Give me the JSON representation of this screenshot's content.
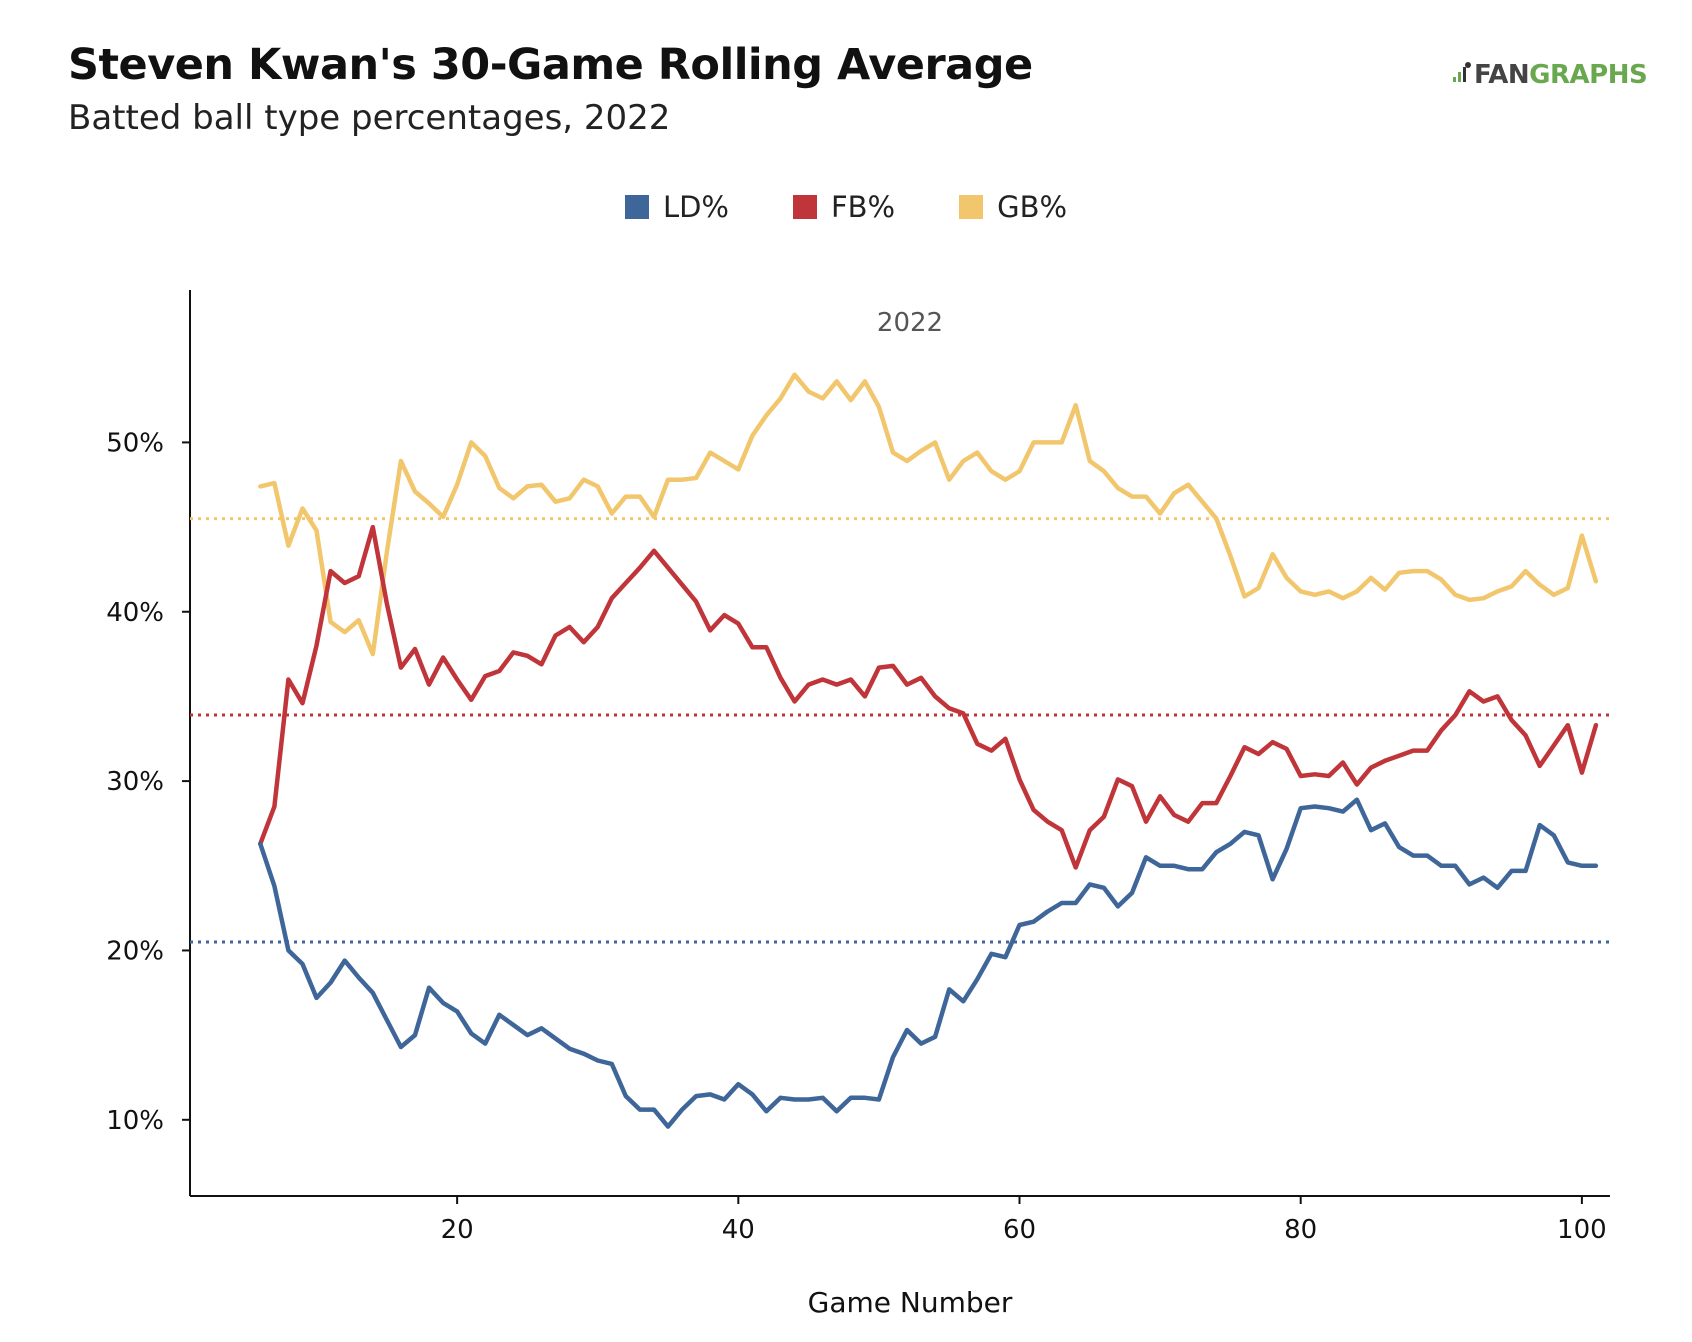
{
  "header": {
    "title": "Steven Kwan's 30-Game Rolling Average",
    "subtitle": "Batted ball type percentages, 2022"
  },
  "logo": {
    "left_text": "FAN",
    "right_text": "GRAPHS",
    "icon": "batter-icon"
  },
  "colors": {
    "LD": "#3f6699",
    "FB": "#c0353a",
    "GB": "#f2c66d"
  },
  "chart_data": {
    "type": "line",
    "facet_label": "2022",
    "xlabel": "Game Number",
    "ylabel": "",
    "xlim": [
      1,
      102
    ],
    "ylim": [
      5.5,
      59
    ],
    "xticks": [
      20,
      40,
      60,
      80,
      100
    ],
    "yticks": [
      10,
      20,
      30,
      40,
      50
    ],
    "ytick_labels": [
      "10%",
      "20%",
      "30%",
      "40%",
      "50%"
    ],
    "legend_position": "top-center",
    "x": [
      6,
      7,
      8,
      9,
      10,
      11,
      12,
      13,
      14,
      15,
      16,
      17,
      18,
      19,
      20,
      21,
      22,
      23,
      24,
      25,
      26,
      27,
      28,
      29,
      30,
      31,
      32,
      33,
      34,
      35,
      36,
      37,
      38,
      39,
      40,
      41,
      42,
      43,
      44,
      45,
      46,
      47,
      48,
      49,
      50,
      51,
      52,
      53,
      54,
      55,
      56,
      57,
      58,
      59,
      60,
      61,
      62,
      63,
      64,
      65,
      66,
      67,
      68,
      69,
      70,
      71,
      72,
      73,
      74,
      75,
      76,
      77,
      78,
      79,
      80,
      81,
      82,
      83,
      84,
      85,
      86,
      87,
      88,
      89,
      90,
      91,
      92,
      93,
      94,
      95,
      96,
      97,
      98,
      99,
      100,
      101
    ],
    "series": [
      {
        "name": "LD%",
        "color": "#3f6699",
        "values": [
          26.3,
          23.8,
          20.0,
          19.2,
          17.2,
          18.1,
          19.4,
          18.4,
          17.5,
          15.9,
          14.3,
          15.0,
          17.8,
          16.9,
          16.4,
          15.1,
          14.5,
          16.2,
          15.6,
          15.0,
          15.4,
          14.8,
          14.2,
          13.9,
          13.5,
          13.3,
          11.4,
          10.6,
          10.6,
          9.6,
          10.6,
          11.4,
          11.5,
          11.2,
          12.1,
          11.5,
          10.5,
          11.3,
          11.2,
          11.2,
          11.3,
          10.5,
          11.3,
          11.3,
          11.2,
          13.7,
          15.3,
          14.5,
          14.9,
          17.7,
          17.0,
          18.3,
          19.8,
          19.6,
          21.5,
          21.7,
          22.3,
          22.8,
          22.8,
          23.9,
          23.7,
          22.6,
          23.4,
          25.5,
          25.0,
          25.0,
          24.8,
          24.8,
          25.8,
          26.3,
          27.0,
          26.8,
          24.2,
          26.0,
          28.4,
          28.5,
          28.4,
          28.2,
          28.9,
          27.1,
          27.5,
          26.1,
          25.6,
          25.6,
          25.0,
          25.0,
          23.9,
          24.3,
          23.7,
          24.7,
          24.7,
          27.4,
          26.8,
          25.2,
          25.0,
          25.0
        ]
      },
      {
        "name": "FB%",
        "color": "#c0353a",
        "values": [
          26.3,
          28.5,
          36.0,
          34.6,
          38.0,
          42.4,
          41.7,
          42.1,
          45.0,
          40.5,
          36.7,
          37.8,
          35.7,
          37.3,
          36.0,
          34.8,
          36.2,
          36.5,
          37.6,
          37.4,
          36.9,
          38.6,
          39.1,
          38.2,
          39.1,
          40.8,
          41.7,
          42.6,
          43.6,
          42.6,
          41.6,
          40.6,
          38.9,
          39.8,
          39.3,
          37.9,
          37.9,
          36.1,
          34.7,
          35.7,
          36.0,
          35.7,
          36.0,
          35.0,
          36.7,
          36.8,
          35.7,
          36.1,
          35.0,
          34.3,
          34.0,
          32.2,
          31.8,
          32.5,
          30.1,
          28.3,
          27.6,
          27.1,
          24.9,
          27.1,
          27.9,
          30.1,
          29.7,
          27.6,
          29.1,
          28.0,
          27.6,
          28.7,
          28.7,
          30.3,
          32.0,
          31.6,
          32.3,
          31.9,
          30.3,
          30.4,
          30.3,
          31.1,
          29.8,
          30.8,
          31.2,
          31.5,
          31.8,
          31.8,
          33.0,
          33.9,
          35.3,
          34.7,
          35.0,
          33.6,
          32.7,
          30.9,
          32.1,
          33.3,
          30.5,
          33.3
        ]
      },
      {
        "name": "GB%",
        "color": "#f2c66d",
        "values": [
          47.4,
          47.6,
          43.9,
          46.1,
          44.8,
          39.4,
          38.8,
          39.5,
          37.5,
          43.5,
          48.9,
          47.1,
          46.4,
          45.6,
          47.5,
          50.0,
          49.2,
          47.3,
          46.7,
          47.4,
          47.5,
          46.5,
          46.7,
          47.8,
          47.4,
          45.8,
          46.8,
          46.8,
          45.6,
          47.8,
          47.8,
          47.9,
          49.4,
          48.9,
          48.4,
          50.4,
          51.6,
          52.6,
          54.0,
          53.0,
          52.6,
          53.6,
          52.5,
          53.6,
          52.1,
          49.4,
          48.9,
          49.5,
          50.0,
          47.8,
          48.9,
          49.4,
          48.3,
          47.8,
          48.3,
          50.0,
          50.0,
          50.0,
          52.2,
          48.9,
          48.3,
          47.3,
          46.8,
          46.8,
          45.8,
          47.0,
          47.5,
          46.5,
          45.5,
          43.3,
          40.9,
          41.4,
          43.4,
          42.0,
          41.2,
          41.0,
          41.2,
          40.8,
          41.2,
          42.0,
          41.3,
          42.3,
          42.4,
          42.4,
          41.9,
          41.0,
          40.7,
          40.8,
          41.2,
          41.5,
          42.4,
          41.6,
          41.0,
          41.4,
          44.5,
          41.8
        ]
      }
    ],
    "reference_lines": [
      {
        "name": "LD% average",
        "value": 20.5,
        "color": "#3f6699"
      },
      {
        "name": "FB% average",
        "value": 33.9,
        "color": "#c0353a"
      },
      {
        "name": "GB% average",
        "value": 45.5,
        "color": "#f2c66d"
      }
    ]
  }
}
